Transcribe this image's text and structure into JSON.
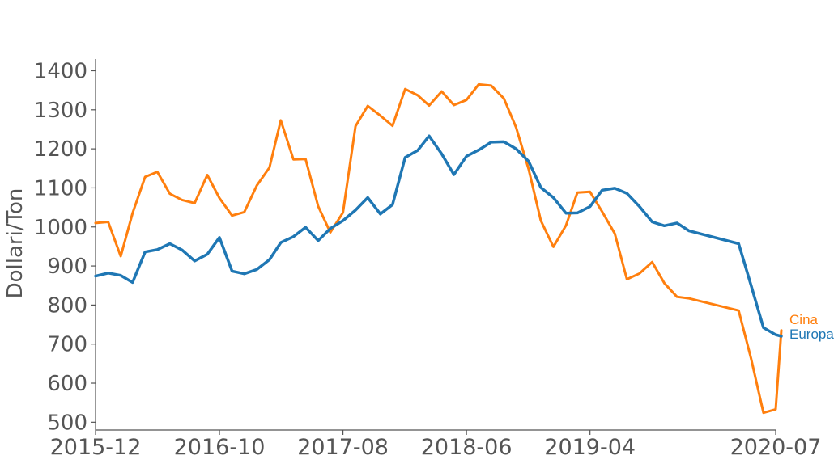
{
  "chart_data": {
    "type": "line",
    "ylabel": "Dollari/Ton",
    "xlabel": "",
    "ylim": [
      480,
      1430
    ],
    "x_ticks": [
      "2015-12",
      "2016-10",
      "2017-08",
      "2018-06",
      "2019-04",
      "2020-07"
    ],
    "y_ticks": [
      500,
      600,
      700,
      800,
      900,
      1000,
      1100,
      1200,
      1300,
      1400
    ],
    "grid": false,
    "series": [
      {
        "name": "Cina",
        "color": "#ff7f0e",
        "points": [
          [
            "2015-12-01",
            1010
          ],
          [
            "2016-01-01",
            1013
          ],
          [
            "2016-02-01",
            925
          ],
          [
            "2016-03-01",
            1035
          ],
          [
            "2016-04-01",
            1128
          ],
          [
            "2016-05-01",
            1141
          ],
          [
            "2016-06-01",
            1085
          ],
          [
            "2016-07-01",
            1069
          ],
          [
            "2016-08-01",
            1061
          ],
          [
            "2016-09-01",
            1133
          ],
          [
            "2016-10-01",
            1074
          ],
          [
            "2016-11-01",
            1029
          ],
          [
            "2016-12-01",
            1038
          ],
          [
            "2017-01-01",
            1106
          ],
          [
            "2017-02-01",
            1152
          ],
          [
            "2017-03-01",
            1273
          ],
          [
            "2017-04-01",
            1173
          ],
          [
            "2017-05-01",
            1174
          ],
          [
            "2017-06-01",
            1053
          ],
          [
            "2017-07-01",
            986
          ],
          [
            "2017-08-01",
            1037
          ],
          [
            "2017-09-01",
            1258
          ],
          [
            "2017-10-01",
            1310
          ],
          [
            "2017-11-01",
            1285
          ],
          [
            "2017-12-01",
            1259
          ],
          [
            "2018-01-01",
            1353
          ],
          [
            "2018-02-01",
            1337
          ],
          [
            "2018-03-01",
            1311
          ],
          [
            "2018-04-01",
            1347
          ],
          [
            "2018-05-01",
            1312
          ],
          [
            "2018-06-01",
            1325
          ],
          [
            "2018-07-01",
            1365
          ],
          [
            "2018-08-01",
            1362
          ],
          [
            "2018-09-01",
            1329
          ],
          [
            "2018-10-01",
            1255
          ],
          [
            "2018-11-01",
            1148
          ],
          [
            "2018-12-01",
            1016
          ],
          [
            "2019-01-01",
            949
          ],
          [
            "2019-02-01",
            1004
          ],
          [
            "2019-03-01",
            1088
          ],
          [
            "2019-04-01",
            1090
          ],
          [
            "2019-05-01",
            1039
          ],
          [
            "2019-06-01",
            983
          ],
          [
            "2019-07-01",
            866
          ],
          [
            "2019-08-01",
            881
          ],
          [
            "2019-09-01",
            910
          ],
          [
            "2019-10-01",
            856
          ],
          [
            "2019-11-01",
            821
          ],
          [
            "2019-12-01",
            817
          ],
          [
            "2020-04-01",
            786
          ],
          [
            "2020-05-01",
            665
          ],
          [
            "2020-06-01",
            524
          ],
          [
            "2020-07-01",
            533
          ],
          [
            "2020-07-15",
            735
          ]
        ]
      },
      {
        "name": "Europa",
        "color": "#1f77b4",
        "points": [
          [
            "2015-12-01",
            874
          ],
          [
            "2016-01-01",
            882
          ],
          [
            "2016-02-01",
            876
          ],
          [
            "2016-03-01",
            858
          ],
          [
            "2016-04-01",
            936
          ],
          [
            "2016-05-01",
            942
          ],
          [
            "2016-06-01",
            957
          ],
          [
            "2016-07-01",
            941
          ],
          [
            "2016-08-01",
            913
          ],
          [
            "2016-09-01",
            930
          ],
          [
            "2016-10-01",
            973
          ],
          [
            "2016-11-01",
            887
          ],
          [
            "2016-12-01",
            880
          ],
          [
            "2017-01-01",
            891
          ],
          [
            "2017-02-01",
            916
          ],
          [
            "2017-03-01",
            960
          ],
          [
            "2017-04-01",
            975
          ],
          [
            "2017-05-01",
            999
          ],
          [
            "2017-06-01",
            965
          ],
          [
            "2017-07-01",
            996
          ],
          [
            "2017-08-01",
            1016
          ],
          [
            "2017-09-01",
            1043
          ],
          [
            "2017-10-01",
            1075
          ],
          [
            "2017-11-01",
            1033
          ],
          [
            "2017-12-01",
            1057
          ],
          [
            "2018-01-01",
            1178
          ],
          [
            "2018-02-01",
            1196
          ],
          [
            "2018-03-01",
            1233
          ],
          [
            "2018-04-01",
            1187
          ],
          [
            "2018-05-01",
            1134
          ],
          [
            "2018-06-01",
            1181
          ],
          [
            "2018-07-01",
            1197
          ],
          [
            "2018-08-01",
            1217
          ],
          [
            "2018-09-01",
            1218
          ],
          [
            "2018-10-01",
            1200
          ],
          [
            "2018-11-01",
            1168
          ],
          [
            "2018-12-01",
            1101
          ],
          [
            "2019-01-01",
            1075
          ],
          [
            "2019-02-01",
            1035
          ],
          [
            "2019-03-01",
            1036
          ],
          [
            "2019-04-01",
            1052
          ],
          [
            "2019-05-01",
            1094
          ],
          [
            "2019-06-01",
            1099
          ],
          [
            "2019-07-01",
            1086
          ],
          [
            "2019-08-01",
            1052
          ],
          [
            "2019-09-01",
            1013
          ],
          [
            "2019-10-01",
            1003
          ],
          [
            "2019-11-01",
            1010
          ],
          [
            "2019-12-01",
            990
          ],
          [
            "2020-04-01",
            957
          ],
          [
            "2020-05-01",
            852
          ],
          [
            "2020-06-01",
            742
          ],
          [
            "2020-07-01",
            724
          ],
          [
            "2020-07-15",
            720
          ]
        ]
      }
    ]
  }
}
